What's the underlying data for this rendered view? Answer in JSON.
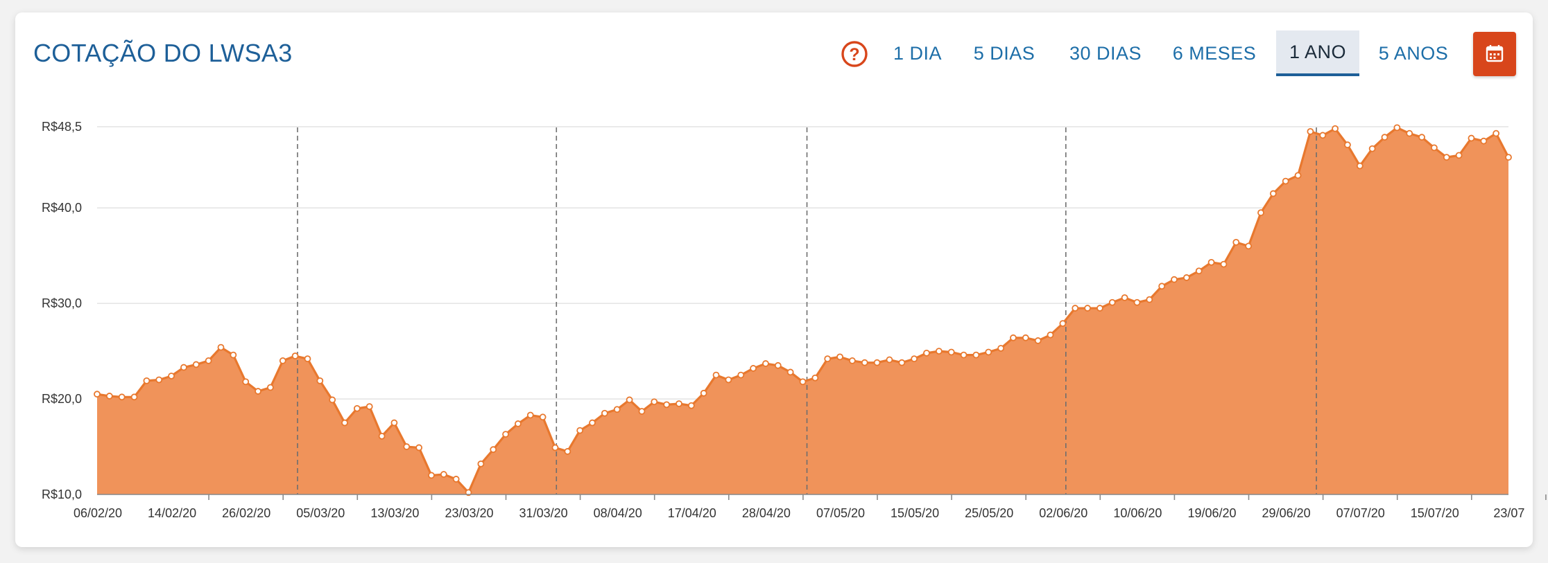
{
  "header": {
    "title": "COTAÇÃO DO LWSA3",
    "help_icon": "question-circle-icon",
    "calendar_icon": "calendar-icon",
    "periods": [
      {
        "label": "1 DIA",
        "active": false
      },
      {
        "label": "5 DIAS",
        "active": false
      },
      {
        "label": "30 DIAS",
        "active": false
      },
      {
        "label": "6 MESES",
        "active": false
      },
      {
        "label": "1 ANO",
        "active": true
      },
      {
        "label": "5 ANOS",
        "active": false
      }
    ]
  },
  "colors": {
    "accent": "#d8461b",
    "line": "#e8782e",
    "fill": "#f0935a",
    "title": "#1d5f98",
    "link": "#1d6ea8"
  },
  "chart_data": {
    "type": "area",
    "title": "",
    "xlabel": "",
    "ylabel": "",
    "ylim": [
      10,
      48.5
    ],
    "y_ticks": [
      {
        "value": 48.5,
        "label": "R$48,5"
      },
      {
        "value": 40.0,
        "label": "R$40,0"
      },
      {
        "value": 30.0,
        "label": "R$30,0"
      },
      {
        "value": 20.0,
        "label": "R$20,0"
      },
      {
        "value": 10.0,
        "label": "R$10,0"
      }
    ],
    "x_tick_labels": [
      "06/02/20",
      "14/02/20",
      "26/02/20",
      "05/03/20",
      "13/03/20",
      "23/03/20",
      "31/03/20",
      "08/04/20",
      "17/04/20",
      "28/04/20",
      "07/05/20",
      "15/05/20",
      "25/05/20",
      "02/06/20",
      "10/06/20",
      "19/06/20",
      "29/06/20",
      "07/07/20",
      "15/07/20",
      "23/07"
    ],
    "grid": true,
    "month_separators": [
      "01/03/20",
      "01/04/20",
      "01/05/20",
      "01/06/20",
      "01/07/20"
    ],
    "series": [
      {
        "values": [
          20.5,
          20.3,
          20.2,
          20.2,
          21.9,
          22.0,
          22.4,
          23.3,
          23.6,
          24.0,
          25.4,
          24.6,
          21.8,
          20.8,
          21.2,
          24.0,
          24.5,
          24.2,
          21.9,
          19.9,
          17.5,
          19.0,
          19.2,
          16.1,
          17.5,
          15.0,
          14.9,
          12.0,
          12.1,
          11.6,
          10.2,
          13.2,
          14.7,
          16.3,
          17.4,
          18.3,
          18.1,
          14.9,
          14.5,
          16.7,
          17.5,
          18.5,
          18.9,
          19.9,
          18.7,
          19.7,
          19.4,
          19.5,
          19.3,
          20.6,
          22.5,
          22.0,
          22.5,
          23.2,
          23.7,
          23.5,
          22.8,
          21.8,
          22.2,
          24.2,
          24.4,
          24.0,
          23.8,
          23.8,
          24.1,
          23.8,
          24.2,
          24.8,
          25.0,
          24.9,
          24.6,
          24.6,
          24.9,
          25.3,
          26.4,
          26.4,
          26.1,
          26.7,
          27.9,
          29.5,
          29.5,
          29.5,
          30.1,
          30.6,
          30.1,
          30.4,
          31.8,
          32.5,
          32.7,
          33.4,
          34.3,
          34.1,
          36.4,
          36.0,
          39.5,
          41.5,
          42.8,
          43.4,
          48.0,
          47.6,
          48.3,
          46.6,
          44.4,
          46.2,
          47.4,
          48.4,
          47.8,
          47.4,
          46.3,
          45.3,
          45.5,
          47.3,
          47.0,
          47.8,
          45.3
        ]
      }
    ]
  }
}
